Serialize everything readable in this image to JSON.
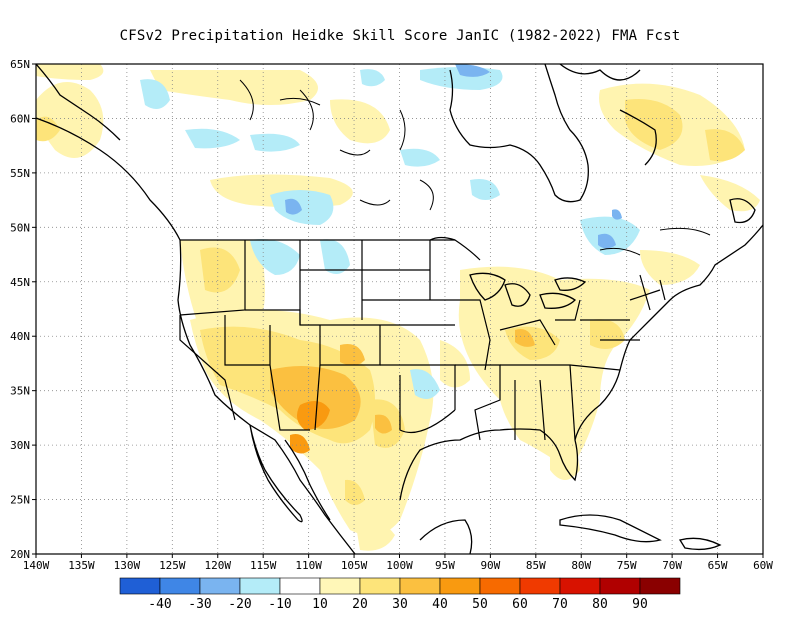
{
  "title": "CFSv2  Precipitation Heidke Skill Score JanIC (1982-2022) FMA Fcst",
  "map": {
    "lat_ticks": [
      "65N",
      "60N",
      "55N",
      "50N",
      "45N",
      "40N",
      "35N",
      "30N",
      "25N",
      "20N"
    ],
    "lon_ticks": [
      "140W",
      "135W",
      "130W",
      "125W",
      "120W",
      "115W",
      "110W",
      "105W",
      "100W",
      "95W",
      "90W",
      "85W",
      "80W",
      "75W",
      "70W",
      "65W",
      "60W"
    ],
    "lat_range": [
      20,
      65
    ],
    "lon_range": [
      -140,
      -60
    ],
    "grid": "dotted"
  },
  "colorbar": {
    "labels": [
      "-40",
      "-30",
      "-20",
      "-10",
      "10",
      "20",
      "30",
      "40",
      "50",
      "60",
      "70",
      "80",
      "90"
    ],
    "colors": [
      "#1f5fd6",
      "#3f86e6",
      "#7ab4f0",
      "#b4ecf8",
      "#ffffff",
      "#fff7b8",
      "#fde47a",
      "#fbc040",
      "#f99a10",
      "#f76a00",
      "#f03a00",
      "#d81200",
      "#b00000",
      "#8a0000"
    ]
  },
  "fields": {
    "colors": {
      "level10": "#fff4b0",
      "level20": "#fde47a",
      "level30": "#fbc040",
      "level40": "#f99a10",
      "neg10": "#b4ecf8",
      "neg20": "#7ab4f0",
      "neg30": "#3f86e6"
    }
  }
}
